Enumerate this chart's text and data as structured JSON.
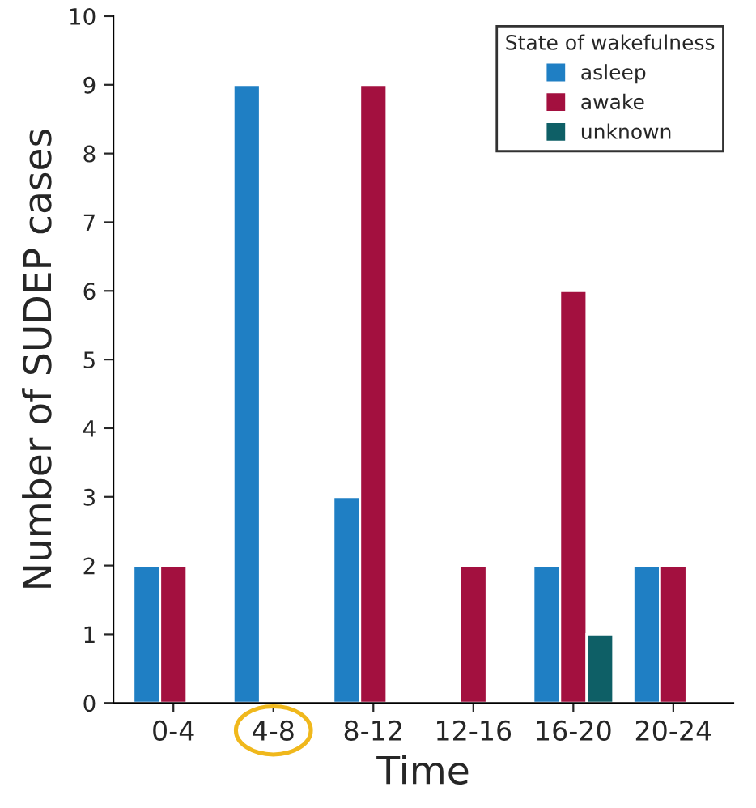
{
  "chart_data": {
    "type": "bar",
    "xlabel": "Time",
    "ylabel": "Number of SUDEP cases",
    "legend_title": "State of wakefulness",
    "categories": [
      "0-4",
      "4-8",
      "8-12",
      "12-16",
      "16-20",
      "20-24"
    ],
    "series": [
      {
        "name": "asleep",
        "color": "#1f7fc4",
        "values": [
          2,
          9,
          3,
          null,
          2,
          2
        ]
      },
      {
        "name": "awake",
        "color": "#a3103f",
        "values": [
          2,
          null,
          9,
          2,
          6,
          2
        ]
      },
      {
        "name": "unknown",
        "color": "#0e5f66",
        "values": [
          null,
          null,
          null,
          null,
          1,
          null
        ]
      }
    ],
    "ylim": [
      0,
      10
    ],
    "yticks": [
      0,
      1,
      2,
      3,
      4,
      5,
      6,
      7,
      8,
      9,
      10
    ],
    "grid": false,
    "legend": "top right"
  }
}
